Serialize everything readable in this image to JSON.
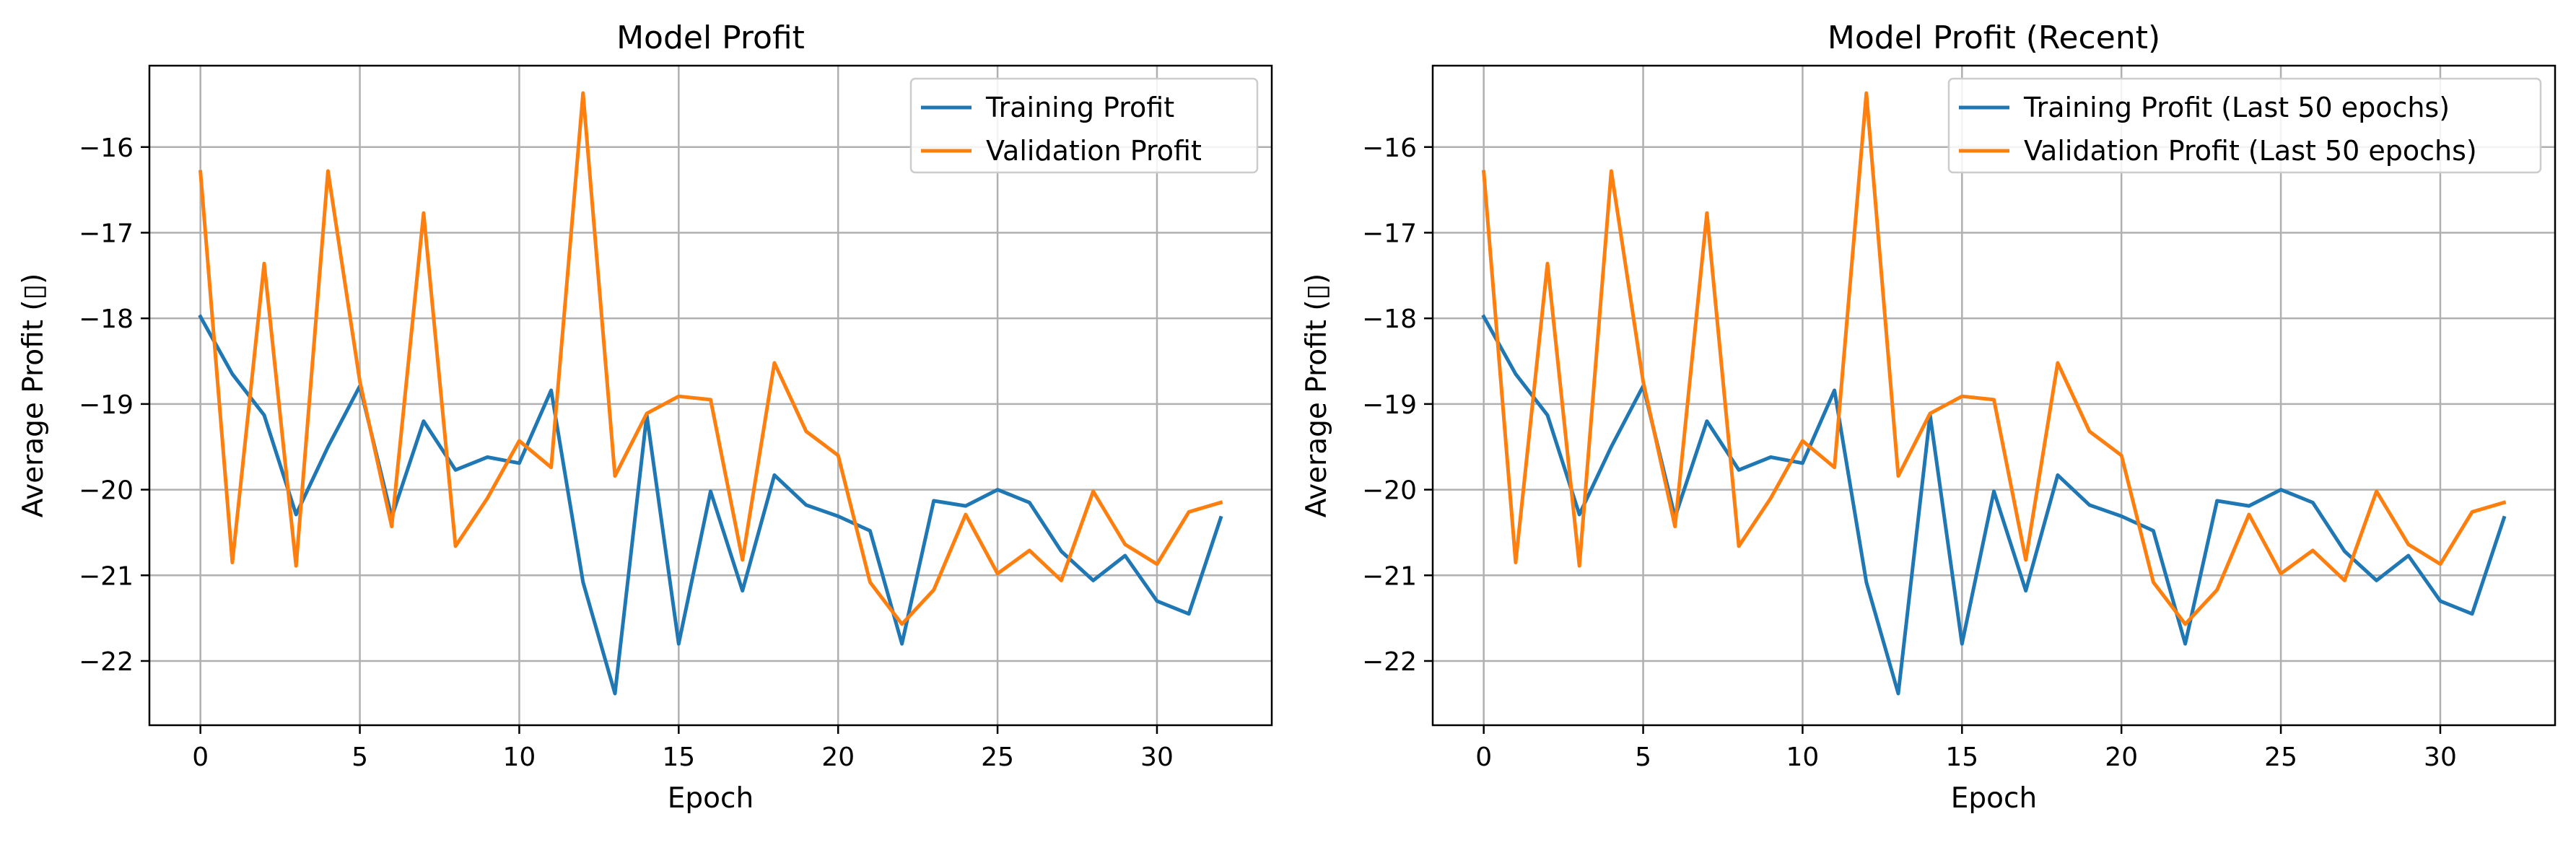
{
  "chart_data": [
    {
      "type": "line",
      "title": "Model Profit",
      "xlabel": "Epoch",
      "ylabel": "Average Profit (▯)",
      "xlim": [
        -1.6,
        33.6
      ],
      "ylim": [
        -22.75,
        -15.05
      ],
      "xticks": [
        0,
        5,
        10,
        15,
        20,
        25,
        30
      ],
      "yticks": [
        -16,
        -17,
        -18,
        -19,
        -20,
        -21,
        -22
      ],
      "xtick_labels": [
        "0",
        "5",
        "10",
        "15",
        "20",
        "25",
        "30"
      ],
      "ytick_labels": [
        "−16",
        "−17",
        "−18",
        "−19",
        "−20",
        "−21",
        "−22"
      ],
      "grid": true,
      "legend_position": "top-right",
      "x": [
        0,
        1,
        2,
        3,
        4,
        5,
        6,
        7,
        8,
        9,
        10,
        11,
        12,
        13,
        14,
        15,
        16,
        17,
        18,
        19,
        20,
        21,
        22,
        23,
        24,
        25,
        26,
        27,
        28,
        29,
        30,
        31,
        32
      ],
      "series": [
        {
          "name": "Training Profit",
          "color": "#1f77b4",
          "values": [
            -17.98,
            -18.65,
            -19.13,
            -20.29,
            -19.5,
            -18.79,
            -20.32,
            -19.2,
            -19.77,
            -19.62,
            -19.69,
            -18.84,
            -21.08,
            -22.38,
            -19.13,
            -21.8,
            -20.02,
            -21.18,
            -19.83,
            -20.18,
            -20.31,
            -20.48,
            -21.8,
            -20.13,
            -20.19,
            -20.0,
            -20.15,
            -20.72,
            -21.06,
            -20.77,
            -21.3,
            -21.45,
            -20.33
          ]
        },
        {
          "name": "Validation Profit",
          "color": "#ff7f0e",
          "values": [
            -16.29,
            -20.85,
            -17.36,
            -20.89,
            -16.28,
            -18.74,
            -20.43,
            -16.77,
            -20.66,
            -20.1,
            -19.43,
            -19.74,
            -15.37,
            -19.84,
            -19.11,
            -18.91,
            -18.95,
            -20.82,
            -18.52,
            -19.32,
            -19.6,
            -21.08,
            -21.57,
            -21.17,
            -20.29,
            -20.98,
            -20.71,
            -21.06,
            -20.02,
            -20.64,
            -20.87,
            -20.26,
            -20.15
          ]
        }
      ]
    },
    {
      "type": "line",
      "title": "Model Profit (Recent)",
      "xlabel": "Epoch",
      "ylabel": "Average Profit (▯)",
      "xlim": [
        -1.6,
        33.6
      ],
      "ylim": [
        -22.75,
        -15.05
      ],
      "xticks": [
        0,
        5,
        10,
        15,
        20,
        25,
        30
      ],
      "yticks": [
        -16,
        -17,
        -18,
        -19,
        -20,
        -21,
        -22
      ],
      "xtick_labels": [
        "0",
        "5",
        "10",
        "15",
        "20",
        "25",
        "30"
      ],
      "ytick_labels": [
        "−16",
        "−17",
        "−18",
        "−19",
        "−20",
        "−21",
        "−22"
      ],
      "grid": true,
      "legend_position": "top-right",
      "x": [
        0,
        1,
        2,
        3,
        4,
        5,
        6,
        7,
        8,
        9,
        10,
        11,
        12,
        13,
        14,
        15,
        16,
        17,
        18,
        19,
        20,
        21,
        22,
        23,
        24,
        25,
        26,
        27,
        28,
        29,
        30,
        31,
        32
      ],
      "series": [
        {
          "name": "Training Profit (Last 50 epochs)",
          "color": "#1f77b4",
          "values": [
            -17.98,
            -18.65,
            -19.13,
            -20.29,
            -19.5,
            -18.79,
            -20.32,
            -19.2,
            -19.77,
            -19.62,
            -19.69,
            -18.84,
            -21.08,
            -22.38,
            -19.13,
            -21.8,
            -20.02,
            -21.18,
            -19.83,
            -20.18,
            -20.31,
            -20.48,
            -21.8,
            -20.13,
            -20.19,
            -20.0,
            -20.15,
            -20.72,
            -21.06,
            -20.77,
            -21.3,
            -21.45,
            -20.33
          ]
        },
        {
          "name": "Validation Profit (Last 50 epochs)",
          "color": "#ff7f0e",
          "values": [
            -16.29,
            -20.85,
            -17.36,
            -20.89,
            -16.28,
            -18.74,
            -20.43,
            -16.77,
            -20.66,
            -20.1,
            -19.43,
            -19.74,
            -15.37,
            -19.84,
            -19.11,
            -18.91,
            -18.95,
            -20.82,
            -18.52,
            -19.32,
            -19.6,
            -21.08,
            -21.57,
            -21.17,
            -20.29,
            -20.98,
            -20.71,
            -21.06,
            -20.02,
            -20.64,
            -20.87,
            -20.26,
            -20.15
          ]
        }
      ]
    }
  ]
}
